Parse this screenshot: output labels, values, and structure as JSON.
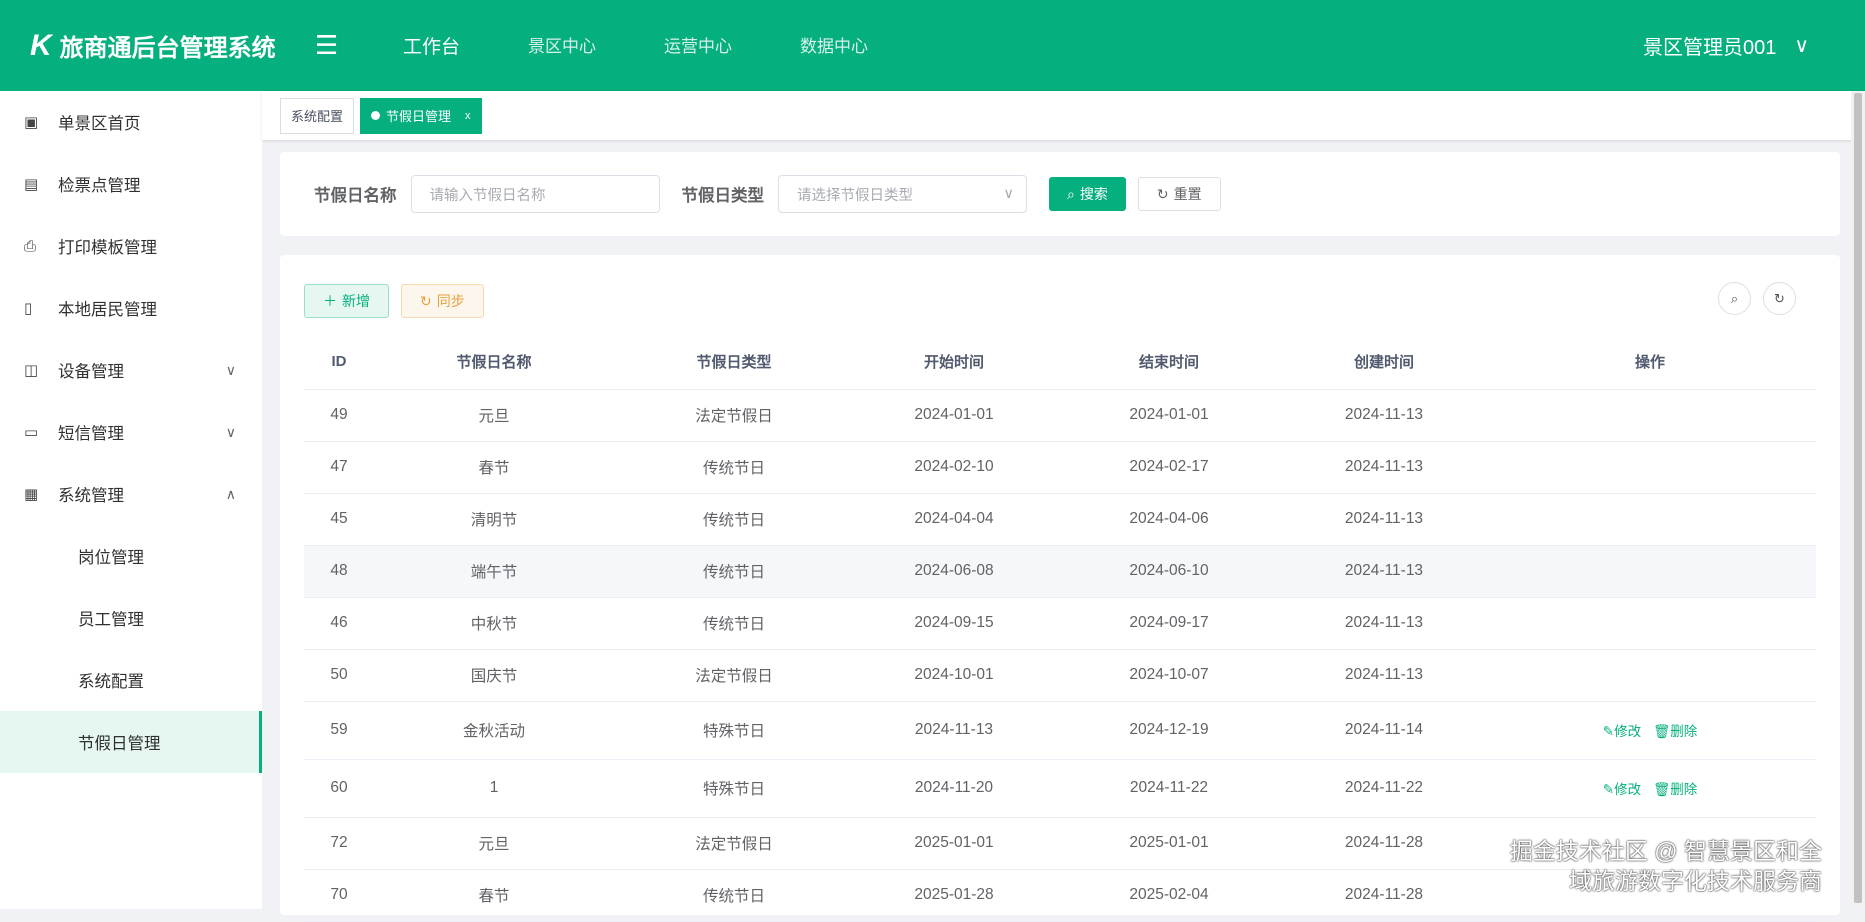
{
  "header": {
    "logo_mark": "K",
    "title": "旅商通后台管理系统",
    "nav": [
      "工作台",
      "景区中心",
      "运营中心",
      "数据中心"
    ],
    "user": "景区管理员001"
  },
  "sidebar": {
    "items": [
      {
        "label": "单景区首页",
        "icon": "monitor-icon",
        "glyph": "▣"
      },
      {
        "label": "检票点管理",
        "icon": "ticket-icon",
        "glyph": "▤"
      },
      {
        "label": "打印模板管理",
        "icon": "printer-icon",
        "glyph": "⎙"
      },
      {
        "label": "本地居民管理",
        "icon": "id-card-icon",
        "glyph": "▯"
      },
      {
        "label": "设备管理",
        "icon": "device-icon",
        "glyph": "◫",
        "chev": "∨"
      },
      {
        "label": "短信管理",
        "icon": "message-icon",
        "glyph": "▭",
        "chev": "∨"
      },
      {
        "label": "系统管理",
        "icon": "box-icon",
        "glyph": "▦",
        "chev": "∧"
      }
    ],
    "sub": [
      "岗位管理",
      "员工管理",
      "系统配置",
      "节假日管理"
    ]
  },
  "tabs": [
    {
      "label": "系统配置"
    },
    {
      "label": "节假日管理",
      "close": "x"
    }
  ],
  "search": {
    "name_label": "节假日名称",
    "name_placeholder": "请输入节假日名称",
    "type_label": "节假日类型",
    "type_placeholder": "请选择节假日类型",
    "search_btn": "搜索",
    "reset_btn": "重置"
  },
  "toolbar": {
    "add": "新增",
    "sync": "同步"
  },
  "table": {
    "columns": [
      "ID",
      "节假日名称",
      "节假日类型",
      "开始时间",
      "结束时间",
      "创建时间",
      "操作"
    ],
    "rows": [
      [
        "49",
        "元旦",
        "法定节假日",
        "2024-01-01",
        "2024-01-01",
        "2024-11-13",
        false
      ],
      [
        "47",
        "春节",
        "传统节日",
        "2024-02-10",
        "2024-02-17",
        "2024-11-13",
        false
      ],
      [
        "45",
        "清明节",
        "传统节日",
        "2024-04-04",
        "2024-04-06",
        "2024-11-13",
        false
      ],
      [
        "48",
        "端午节",
        "传统节日",
        "2024-06-08",
        "2024-06-10",
        "2024-11-13",
        false
      ],
      [
        "46",
        "中秋节",
        "传统节日",
        "2024-09-15",
        "2024-09-17",
        "2024-11-13",
        false
      ],
      [
        "50",
        "国庆节",
        "法定节假日",
        "2024-10-01",
        "2024-10-07",
        "2024-11-13",
        false
      ],
      [
        "59",
        "金秋活动",
        "特殊节日",
        "2024-11-13",
        "2024-12-19",
        "2024-11-14",
        true
      ],
      [
        "60",
        "1",
        "特殊节日",
        "2024-11-20",
        "2024-11-22",
        "2024-11-22",
        true
      ],
      [
        "72",
        "元旦",
        "法定节假日",
        "2025-01-01",
        "2025-01-01",
        "2024-11-28",
        false
      ],
      [
        "70",
        "春节",
        "传统节日",
        "2025-01-28",
        "2025-02-04",
        "2024-11-28",
        false
      ]
    ],
    "edit": "修改",
    "delete": "删除"
  },
  "watermark": "掘金技术社区 @ 智慧景区和全域旅游数字化技术服务商",
  "colors": {
    "primary": "#05af7e",
    "warning": "#e6a23c"
  }
}
